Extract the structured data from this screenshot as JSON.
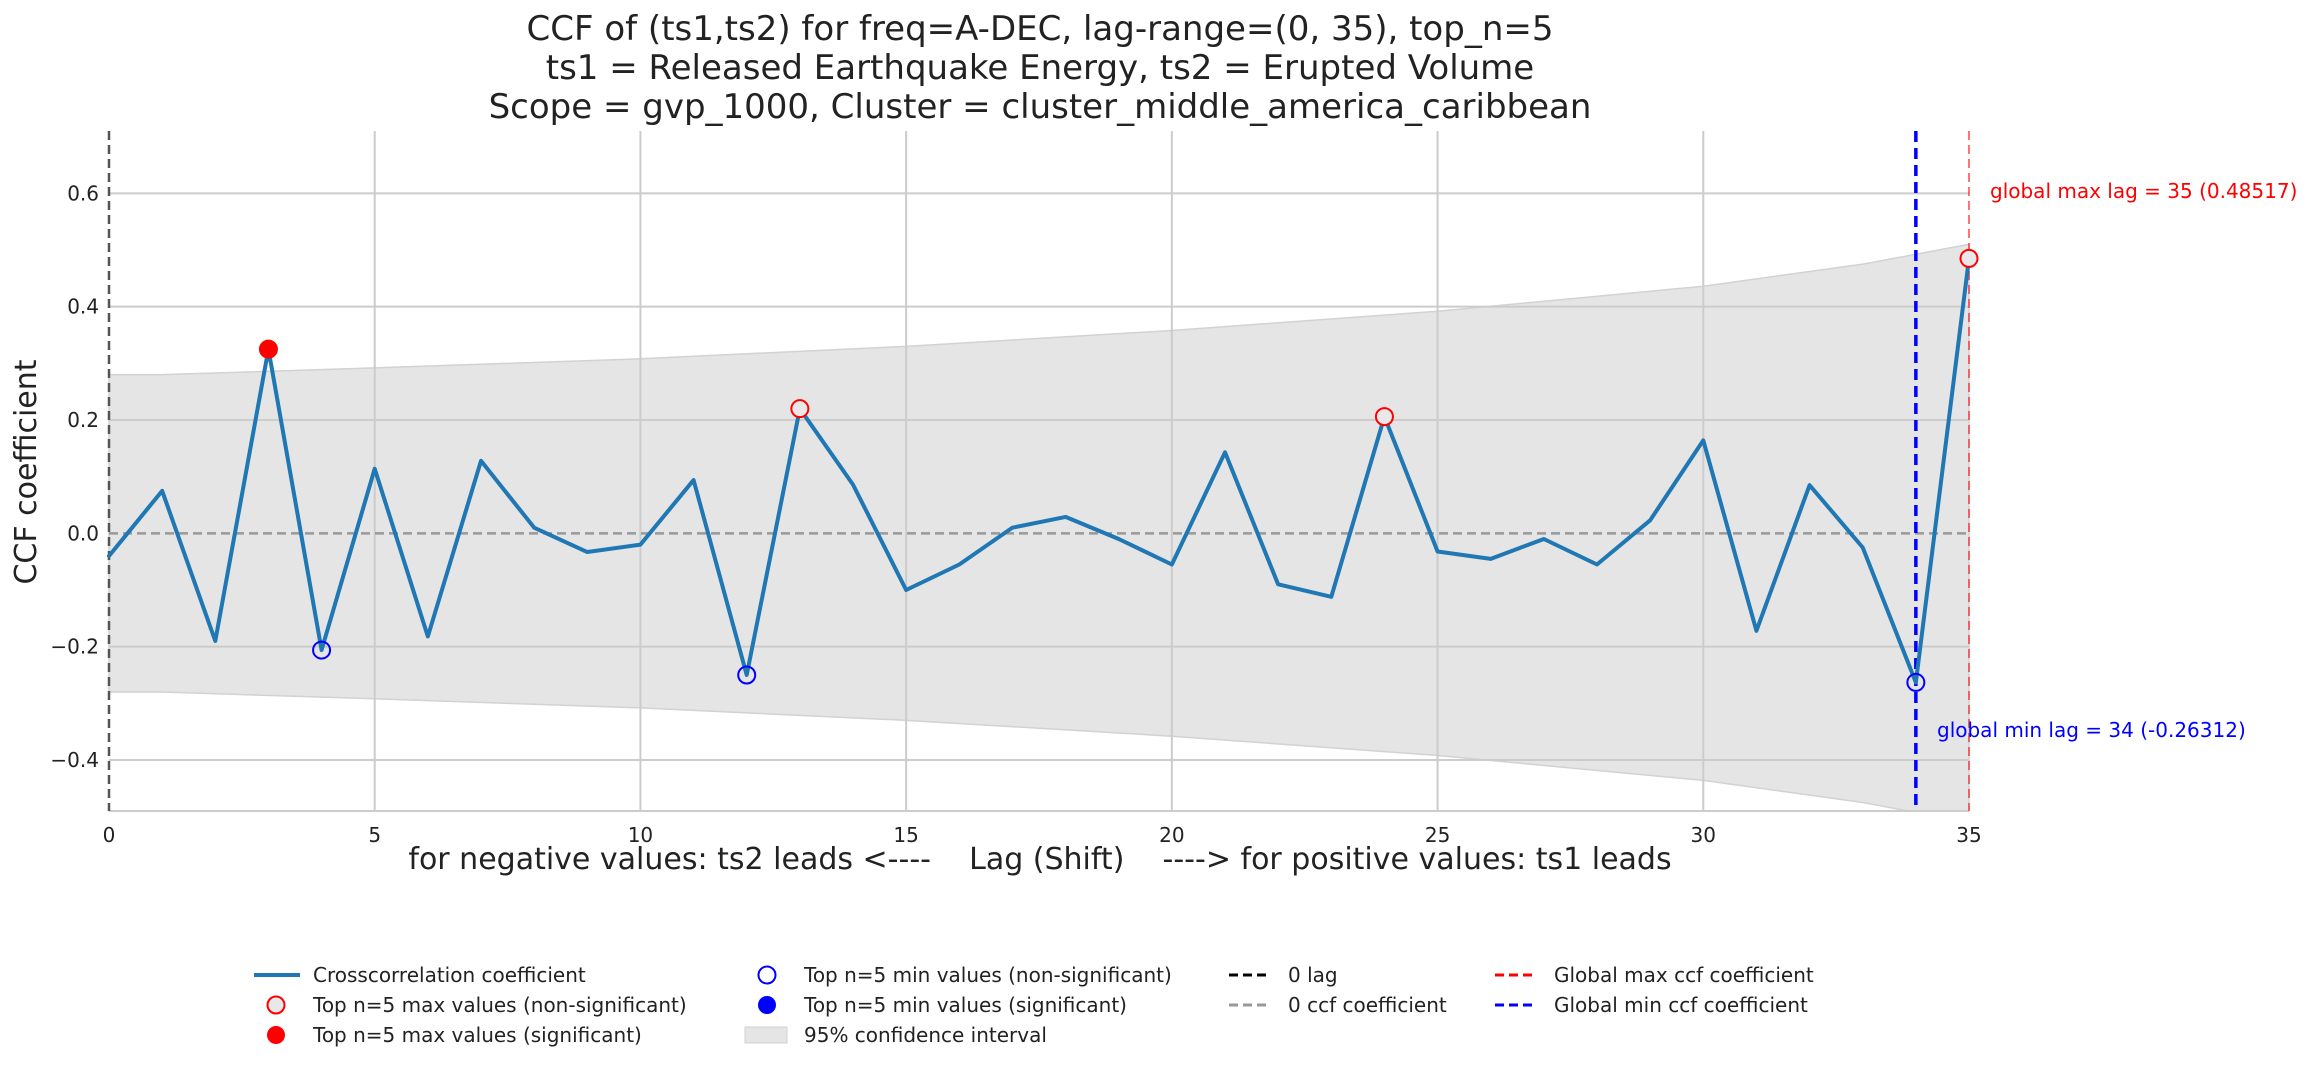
{
  "chart_data": {
    "type": "line",
    "title_lines": [
      "CCF of (ts1,ts2) for freq=A-DEC, lag-range=(0, 35), top_n=5",
      "ts1 = Released Earthquake Energy, ts2 = Erupted Volume",
      "Scope = gvp_1000, Cluster = cluster_middle_america_caribbean"
    ],
    "xlabel": "for negative values: ts2 leads <----    Lag (Shift)    ----> for positive values: ts1 leads",
    "ylabel": "CCF coefficient",
    "xlim": [
      0,
      35
    ],
    "ylim": [
      -0.49,
      0.71
    ],
    "x_ticks": [
      0,
      5,
      10,
      15,
      20,
      25,
      30,
      35
    ],
    "x_tick_labels": [
      "0",
      "5",
      "10",
      "15",
      "20",
      "25",
      "30",
      "35"
    ],
    "y_ticks": [
      -0.4,
      -0.2,
      0.0,
      0.2,
      0.4,
      0.6
    ],
    "y_tick_labels": [
      "−0.4",
      "−0.2",
      "0.0",
      "0.2",
      "0.4",
      "0.6"
    ],
    "grid": true,
    "series": [
      {
        "name": "Crosscorrelation coefficient",
        "color": "#1f77b4",
        "x": [
          0,
          1,
          2,
          3,
          4,
          5,
          6,
          7,
          8,
          9,
          10,
          11,
          12,
          13,
          14,
          15,
          16,
          17,
          18,
          19,
          20,
          21,
          22,
          23,
          24,
          25,
          26,
          27,
          28,
          29,
          30,
          31,
          32,
          33,
          34,
          35
        ],
        "values": [
          -0.04,
          0.075,
          -0.19,
          0.325,
          -0.206,
          0.114,
          -0.182,
          0.128,
          0.01,
          -0.033,
          -0.02,
          0.094,
          -0.25,
          0.22,
          0.086,
          -0.1,
          -0.055,
          0.01,
          0.029,
          -0.01,
          -0.055,
          0.143,
          -0.09,
          -0.112,
          0.206,
          -0.032,
          -0.045,
          -0.01,
          -0.055,
          0.023,
          0.164,
          -0.172,
          0.085,
          -0.025,
          -0.26312,
          0.48517
        ]
      }
    ],
    "confidence_interval": {
      "name": "95% confidence interval",
      "color": "#e5e5e5",
      "x": [
        0,
        1,
        5,
        10,
        15,
        20,
        25,
        30,
        33,
        35
      ],
      "upper": [
        0.28,
        0.28,
        0.292,
        0.308,
        0.33,
        0.358,
        0.392,
        0.436,
        0.475,
        0.51
      ],
      "lower": [
        -0.28,
        -0.28,
        -0.292,
        -0.308,
        -0.33,
        -0.358,
        -0.392,
        -0.436,
        -0.475,
        -0.51
      ]
    },
    "top_max_non_significant": {
      "x": [
        13,
        24,
        35
      ],
      "y": [
        0.22,
        0.206,
        0.48517
      ]
    },
    "top_max_significant": {
      "x": [
        3
      ],
      "y": [
        0.325
      ]
    },
    "top_min_non_significant": {
      "x": [
        4,
        12,
        34
      ],
      "y": [
        -0.206,
        -0.25,
        -0.26312
      ]
    },
    "top_min_significant": {
      "x": [],
      "y": []
    },
    "zero_lag_x": 0,
    "zero_ccf_y": 0,
    "global_max": {
      "lag": 35,
      "value": 0.48517,
      "label": "global max lag = 35 (0.48517)",
      "color": "#ff0000"
    },
    "global_min": {
      "lag": 34,
      "value": -0.26312,
      "label": "global min lag = 34 (-0.26312)",
      "color": "#0000ff"
    },
    "legend": {
      "placement": "bottom",
      "items": [
        {
          "key": "line",
          "label": "Crosscorrelation coefficient"
        },
        {
          "key": "max_ns",
          "label": "Top n=5 max values (non-significant)"
        },
        {
          "key": "max_sig",
          "label": "Top n=5 max values (significant)"
        },
        {
          "key": "min_ns",
          "label": "Top n=5 min values (non-significant)"
        },
        {
          "key": "min_sig",
          "label": "Top n=5 min values (significant)"
        },
        {
          "key": "ci",
          "label": "95% confidence interval"
        },
        {
          "key": "zero_lag",
          "label": "0 lag"
        },
        {
          "key": "zero_ccf",
          "label": "0 ccf coefficient"
        },
        {
          "key": "gmax",
          "label": "Global max ccf coefficient"
        },
        {
          "key": "gmin",
          "label": "Global min ccf coefficient"
        }
      ]
    },
    "colors": {
      "line": "#1f77b4",
      "max_marker": "#ff0000",
      "max_marker_face_ns": "#e8e8e8",
      "min_marker": "#0000ff",
      "grid": "#cccccc",
      "zero_lag": "#555555",
      "zero_ccf": "#999999"
    }
  }
}
